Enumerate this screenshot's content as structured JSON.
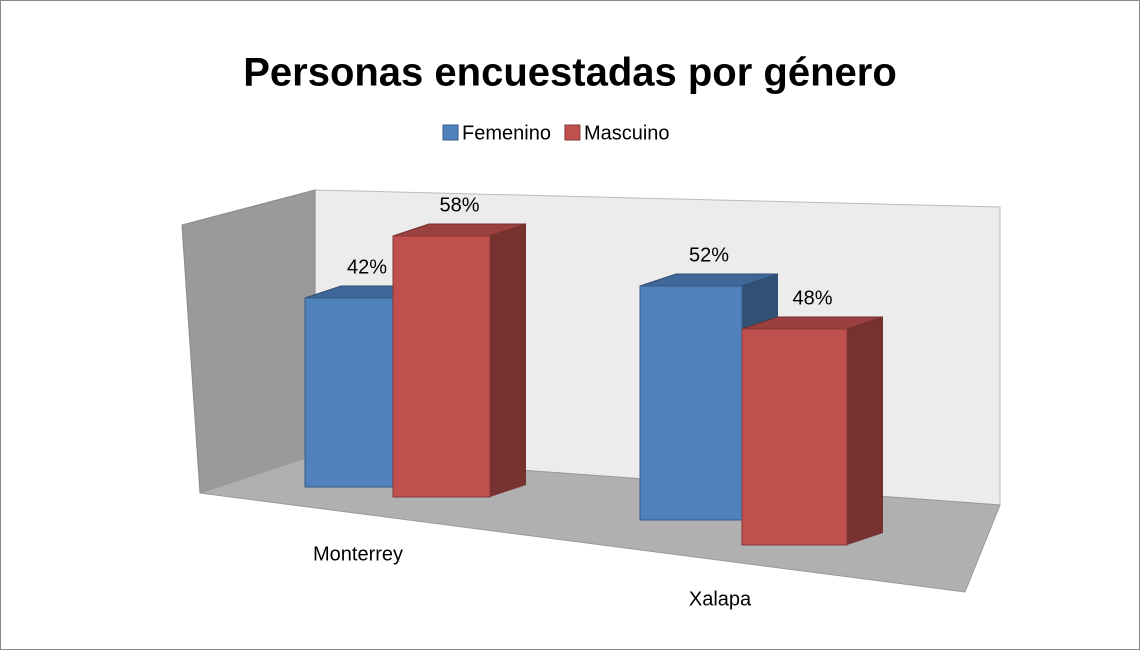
{
  "chart_data": {
    "type": "bar3d",
    "title": "Personas encuestadas por género",
    "categories": [
      "Monterrey",
      "Xalapa"
    ],
    "series": [
      {
        "name": "Femenino",
        "color": "#4f81bd",
        "values": [
          42,
          52
        ],
        "value_labels": [
          "42%",
          "52%"
        ]
      },
      {
        "name": "Mascuino",
        "color": "#c0504d",
        "values": [
          58,
          48
        ],
        "value_labels": [
          "58%",
          "48%"
        ]
      }
    ],
    "legend": "top"
  }
}
